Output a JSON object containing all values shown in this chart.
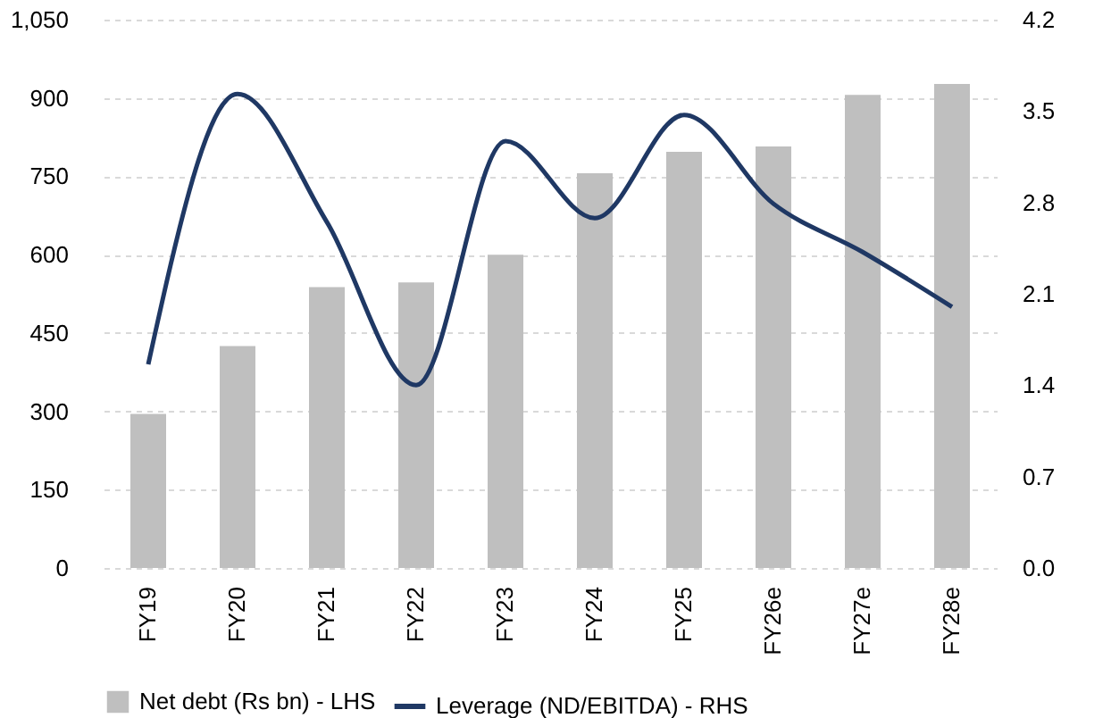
{
  "chart_data": {
    "type": "bar",
    "categories": [
      "FY19",
      "FY20",
      "FY21",
      "FY22",
      "FY23",
      "FY24",
      "FY25",
      "FY26e",
      "FY27e",
      "FY28e"
    ],
    "series": [
      {
        "name": "Net debt (Rs bn) - LHS",
        "color": "#bfbfbf",
        "values": [
          295,
          425,
          538,
          547,
          600,
          756,
          797,
          807,
          906,
          927
        ]
      },
      {
        "name": "Leverage (ND/EBITDA) - RHS",
        "type": "line",
        "axis": "y2",
        "color": "#1f3864",
        "values": [
          1.56,
          3.63,
          2.65,
          1.4,
          3.27,
          2.68,
          3.47,
          2.79,
          2.42,
          2.0
        ]
      }
    ],
    "ylim": [
      0,
      1050
    ],
    "yticks": [
      0,
      150,
      300,
      450,
      600,
      750,
      900,
      {
        "value": 1050,
        "label": "1,050"
      }
    ],
    "y2lim": [
      0,
      4.2
    ],
    "y2ticks": [
      {
        "value": 0,
        "label": "0.0"
      },
      0.7,
      1.4,
      2.1,
      2.8,
      3.5,
      4.2
    ],
    "grid": "y",
    "legend": "bottom",
    "marker": "none",
    "line_style": "solid"
  }
}
